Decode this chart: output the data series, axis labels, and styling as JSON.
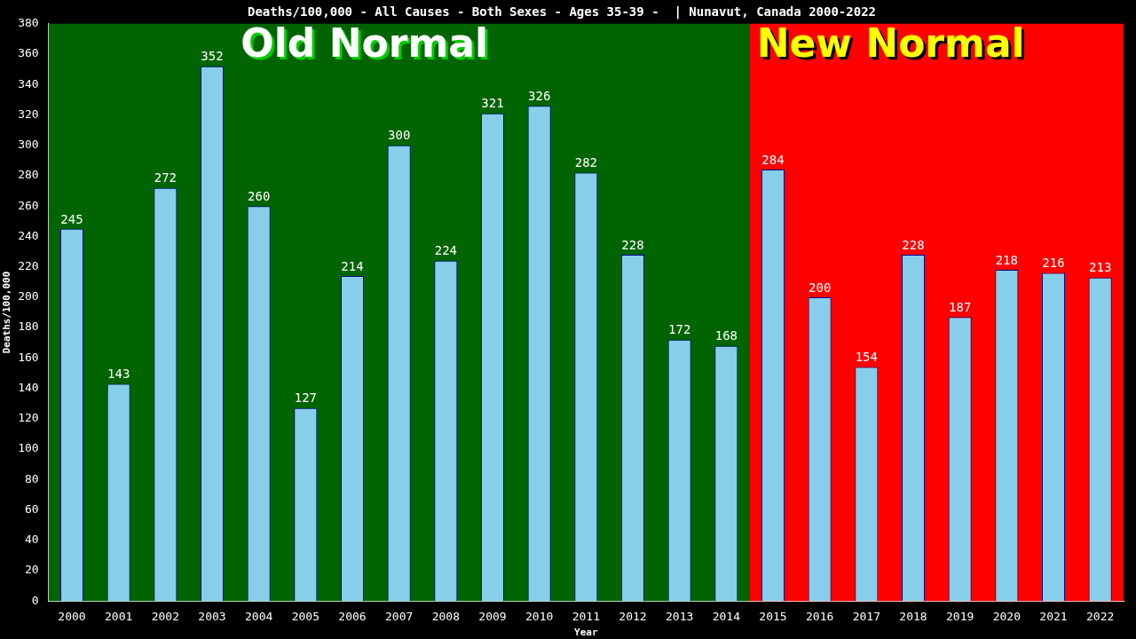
{
  "chart_data": {
    "type": "bar",
    "title": "Deaths/100,000 - All Causes - Both Sexes - Ages 35-39 -  | Nunavut, Canada 2000-2022",
    "xlabel": "Year",
    "ylabel": "Deaths/100,000",
    "categories": [
      "2000",
      "2001",
      "2002",
      "2003",
      "2004",
      "2005",
      "2006",
      "2007",
      "2008",
      "2009",
      "2010",
      "2011",
      "2012",
      "2013",
      "2014",
      "2015",
      "2016",
      "2017",
      "2018",
      "2019",
      "2020",
      "2021",
      "2022"
    ],
    "values": [
      245,
      143,
      272,
      352,
      260,
      127,
      214,
      300,
      224,
      321,
      326,
      282,
      228,
      172,
      168,
      284,
      200,
      154,
      228,
      187,
      218,
      216,
      213
    ],
    "color": "#87ceeb",
    "ylim": [
      0,
      380
    ],
    "yticks": [
      0,
      20,
      40,
      60,
      80,
      100,
      120,
      140,
      160,
      180,
      200,
      220,
      240,
      260,
      280,
      300,
      320,
      340,
      360,
      380
    ],
    "data_labels": true,
    "legend": false,
    "grid": false,
    "bands": [
      {
        "axis": "x",
        "from": "2000",
        "to": "2014",
        "label": "Old Normal",
        "color": "#006400"
      },
      {
        "axis": "x",
        "from": "2015",
        "to": "2022",
        "label": "New Normal",
        "color": "#ff0000"
      }
    ]
  }
}
